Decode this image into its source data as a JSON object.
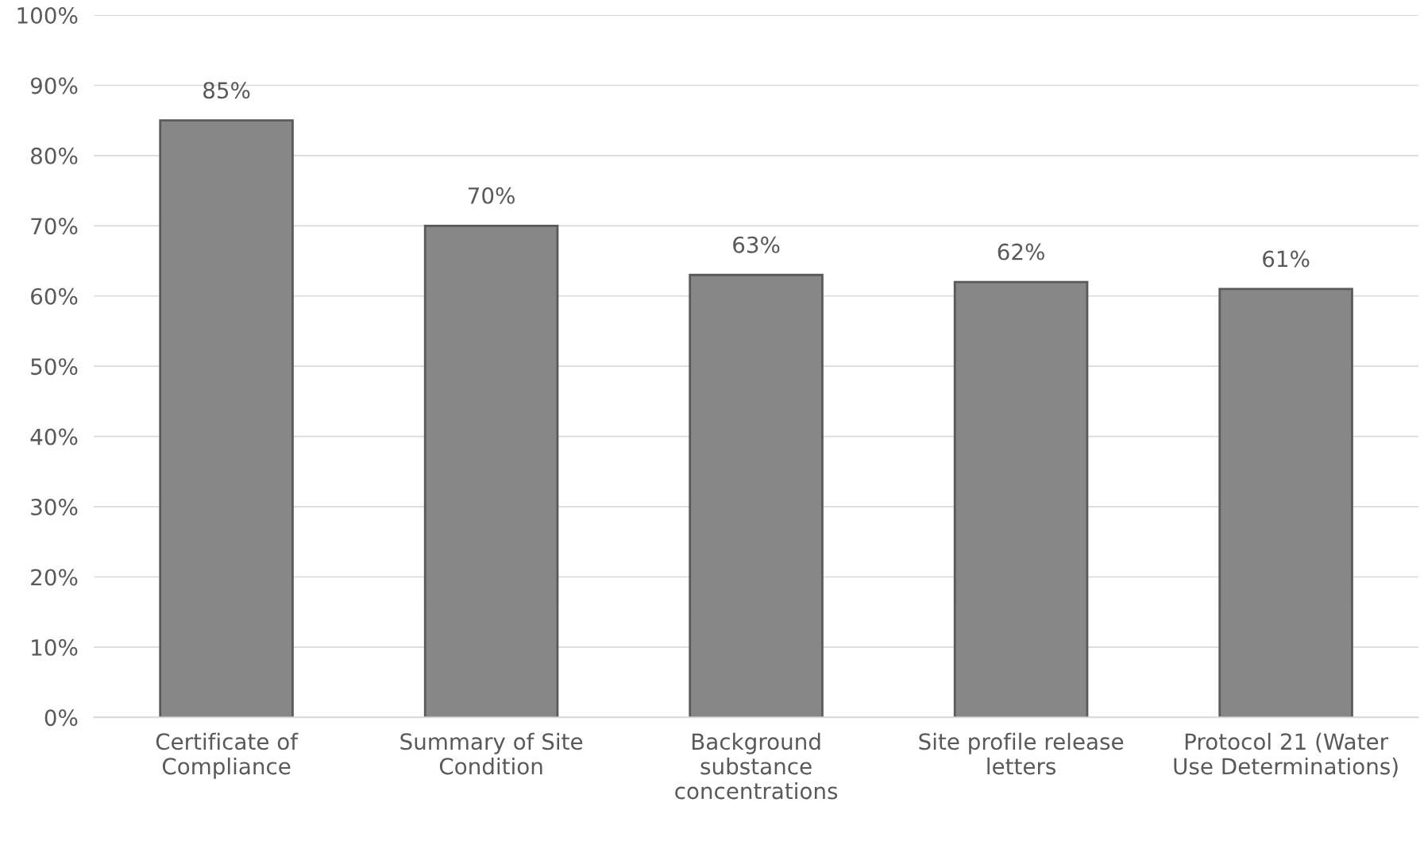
{
  "chart_data": {
    "type": "bar",
    "categories": [
      "Certificate of\nCompliance",
      "Summary of Site\nCondition",
      "Background\nsubstance\nconcentrations",
      "Site profile release\nletters",
      "Protocol 21 (Water\nUse Determinations)"
    ],
    "values": [
      85,
      70,
      63,
      62,
      61
    ],
    "value_labels": [
      "85%",
      "70%",
      "63%",
      "62%",
      "61%"
    ],
    "color": "#878787",
    "ylim": [
      0,
      100
    ],
    "yticks": [
      {
        "value": 0,
        "label": "0%"
      },
      {
        "value": 10,
        "label": "10%"
      },
      {
        "value": 20,
        "label": "20%"
      },
      {
        "value": 30,
        "label": "30%"
      },
      {
        "value": 40,
        "label": "40%"
      },
      {
        "value": 50,
        "label": "50%"
      },
      {
        "value": 60,
        "label": "60%"
      },
      {
        "value": 70,
        "label": "70%"
      },
      {
        "value": 80,
        "label": "80%"
      },
      {
        "value": 90,
        "label": "90%"
      },
      {
        "value": 100,
        "label": "100%"
      }
    ],
    "grid": "y",
    "legend": false
  }
}
